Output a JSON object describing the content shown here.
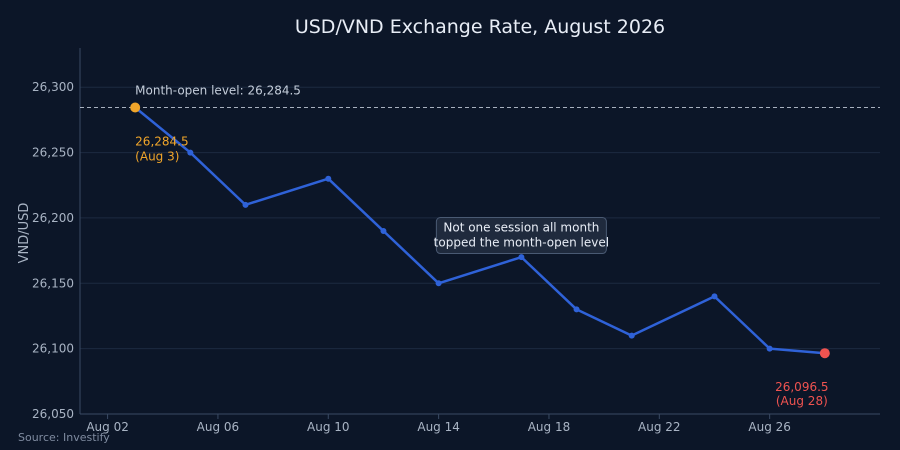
{
  "chart_data": {
    "type": "line",
    "title": "USD/VND Exchange Rate, August 2026",
    "xlabel": "",
    "ylabel": "VND/USD",
    "source": "Source: Investify",
    "xlim": [
      "2026-08-01",
      "2026-08-30"
    ],
    "ylim": [
      26050,
      26330
    ],
    "x_ticks": [
      "2026-08-02",
      "2026-08-06",
      "2026-08-10",
      "2026-08-14",
      "2026-08-18",
      "2026-08-22",
      "2026-08-26"
    ],
    "x_tick_labels": [
      "Aug 02",
      "Aug 06",
      "Aug 10",
      "Aug 14",
      "Aug 18",
      "Aug 22",
      "Aug 26"
    ],
    "y_ticks": [
      26050,
      26100,
      26150,
      26200,
      26250,
      26300
    ],
    "y_tick_labels": [
      "26,050",
      "26,100",
      "26,150",
      "26,200",
      "26,250",
      "26,300"
    ],
    "grid": true,
    "legend": "none",
    "series": [
      {
        "color": "#2f62d8",
        "x": [
          "2026-08-03",
          "2026-08-05",
          "2026-08-07",
          "2026-08-10",
          "2026-08-12",
          "2026-08-14",
          "2026-08-17",
          "2026-08-19",
          "2026-08-21",
          "2026-08-24",
          "2026-08-26",
          "2026-08-28"
        ],
        "values": [
          26284.5,
          26250,
          26210,
          26230,
          26190,
          26150,
          26170,
          26130,
          26110,
          26140,
          26100,
          26096.5
        ]
      }
    ],
    "reference_line": {
      "y": 26284.5,
      "label": "Month-open level: 26,284.5",
      "style": "dashed",
      "color": "#c4cdda"
    },
    "annotations": {
      "start": {
        "x": "2026-08-03",
        "y": 26284.5,
        "value_label": "26,284.5",
        "date_label": "(Aug 3)",
        "color": "#f0a52a"
      },
      "end": {
        "x": "2026-08-28",
        "y": 26096.5,
        "value_label": "26,096.5",
        "date_label": "(Aug 28)",
        "color": "#ef5350"
      },
      "note": {
        "x": "2026-08-17",
        "y": 26185,
        "lines": [
          "Not one session all month",
          "topped the month-open level"
        ]
      }
    }
  }
}
